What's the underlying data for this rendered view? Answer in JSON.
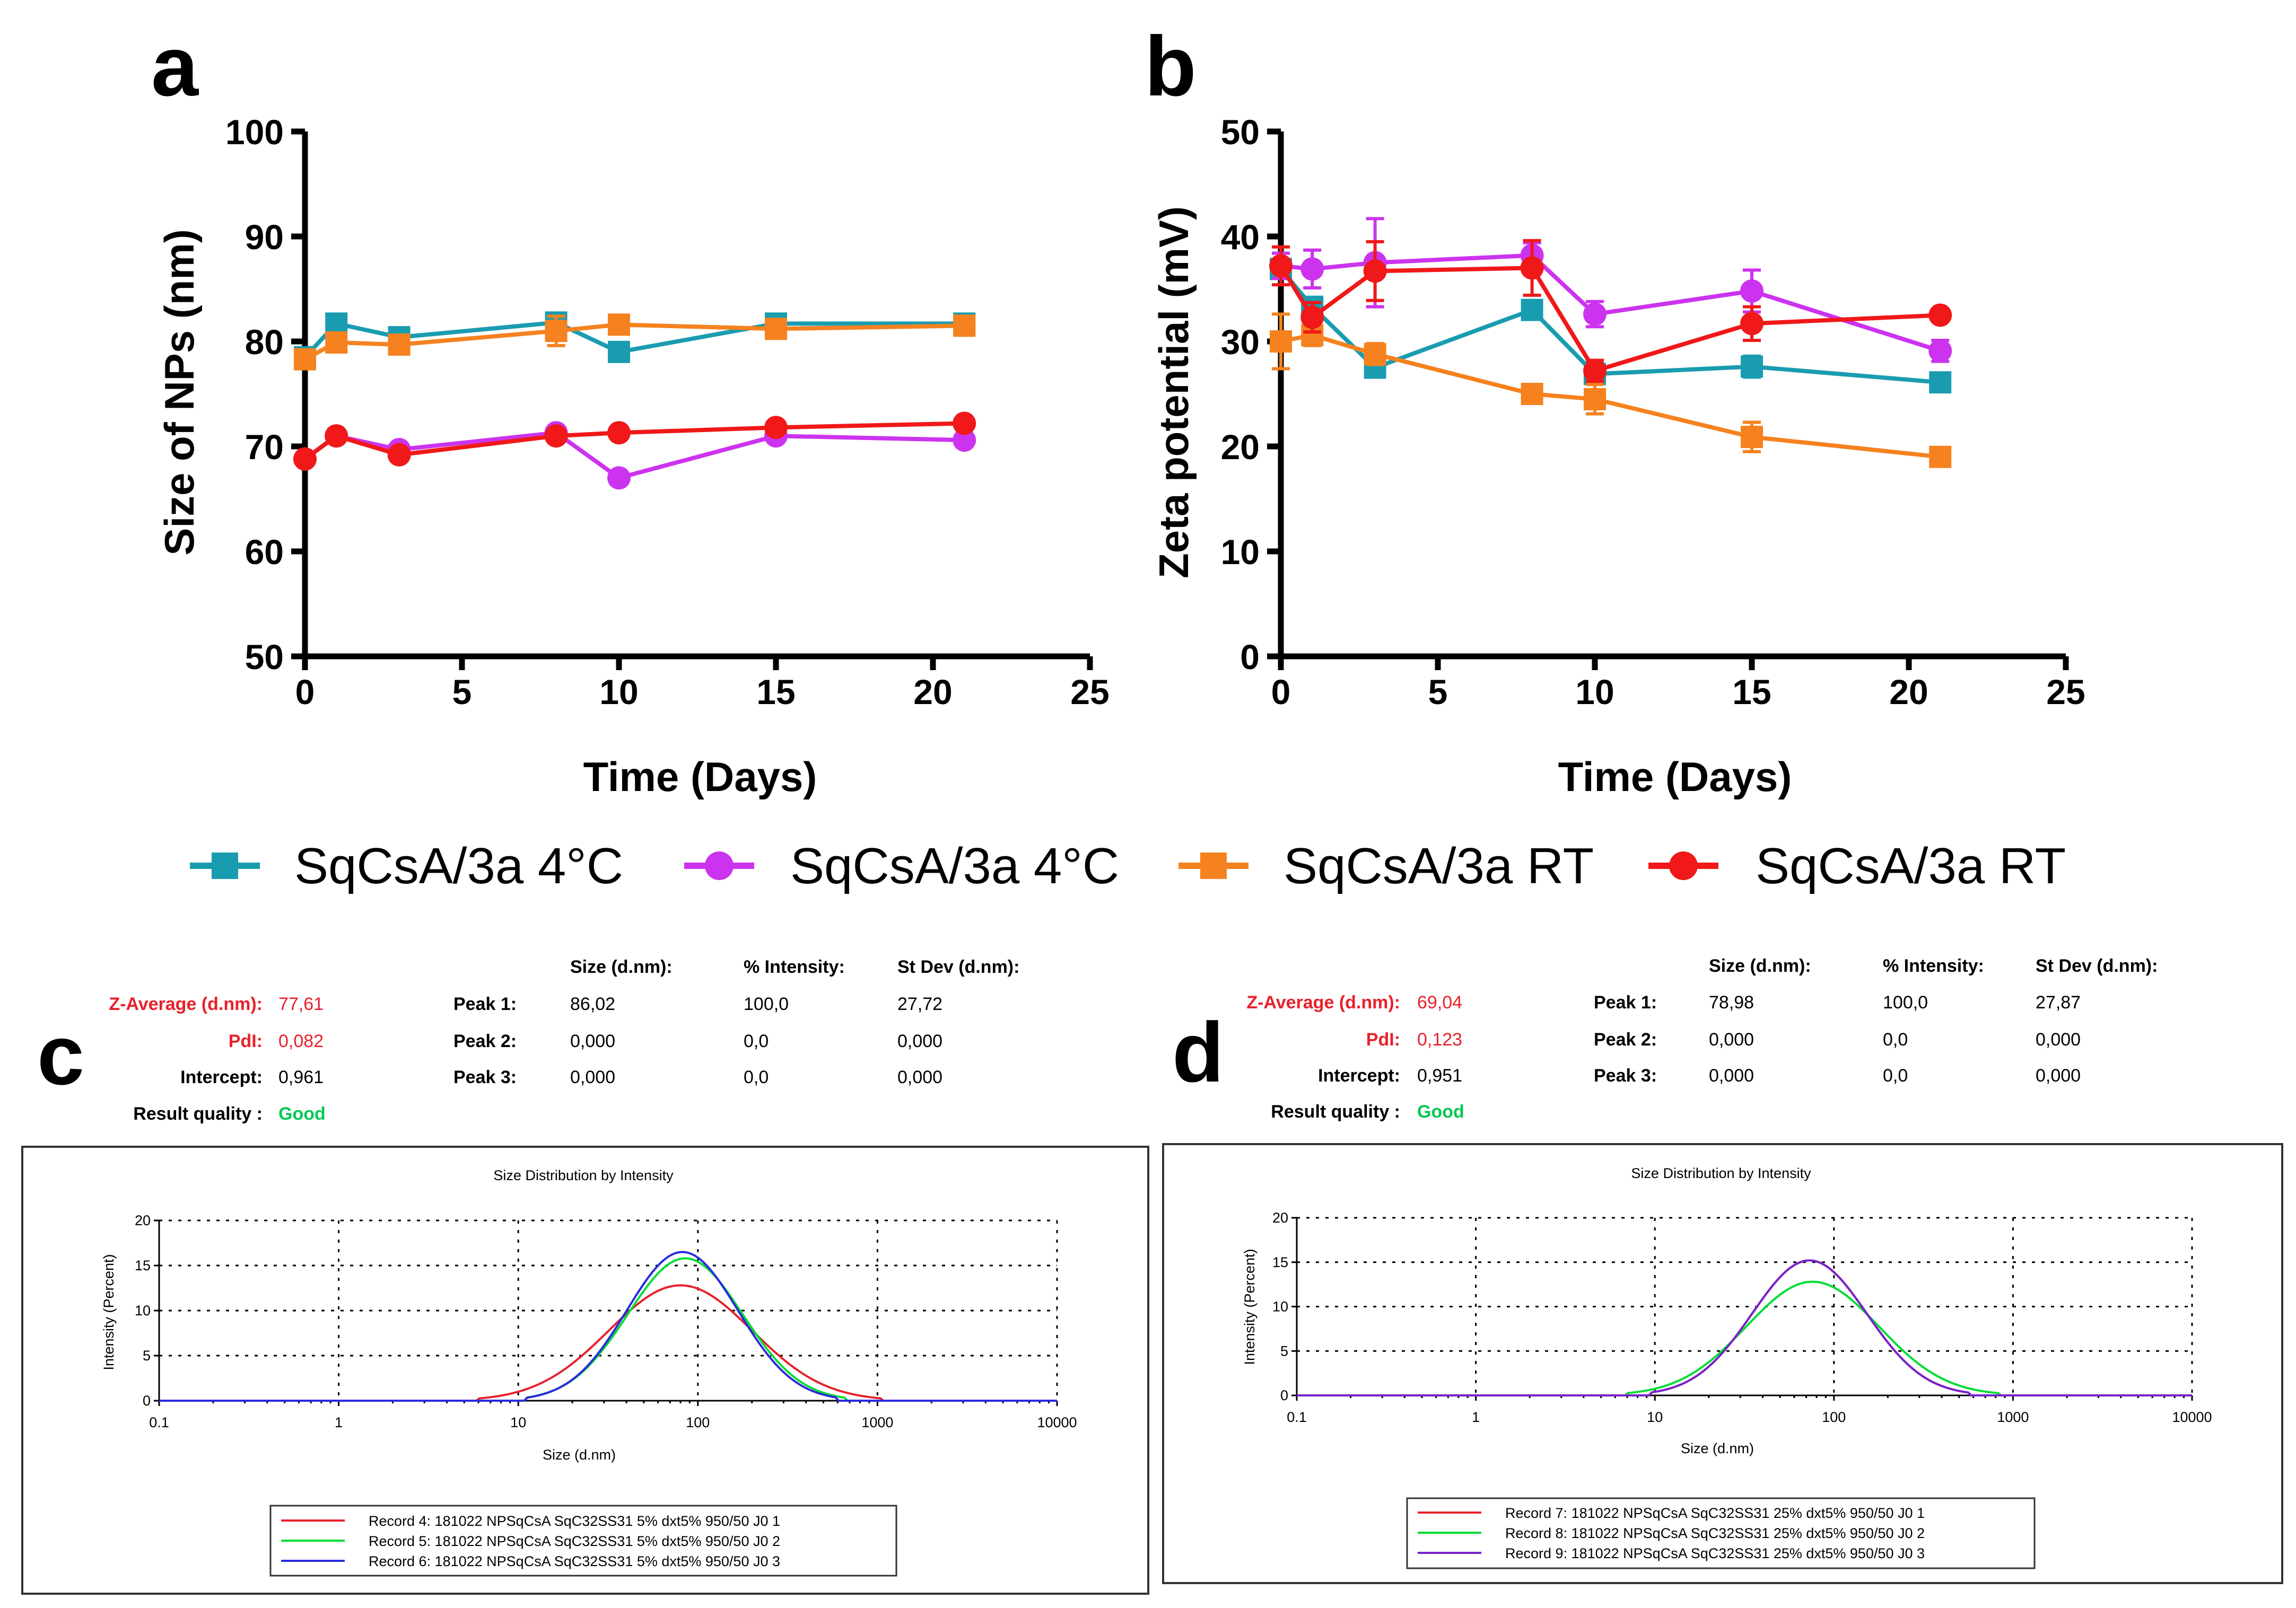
{
  "panel_labels": {
    "a": "a",
    "b": "b",
    "c": "c",
    "d": "d"
  },
  "legend": [
    {
      "label": "SqCsA/3a 4°C",
      "color": "#1a9cb0",
      "marker": "square"
    },
    {
      "label": "SqCsA/3a 4°C",
      "color": "#cc33ee",
      "marker": "circle"
    },
    {
      "label": "SqCsA/3a RT",
      "color": "#f5821f",
      "marker": "square"
    },
    {
      "label": "SqCsA/3a RT",
      "color": "#f01818",
      "marker": "circle"
    }
  ],
  "chart_data": [
    {
      "id": "a",
      "type": "line",
      "xlabel": "Time (Days)",
      "ylabel": "Size of NPs (nm)",
      "xlim": [
        0,
        25
      ],
      "ylim": [
        50,
        100
      ],
      "xticks": [
        0,
        5,
        10,
        15,
        20,
        25
      ],
      "yticks": [
        50,
        60,
        70,
        80,
        90,
        100
      ],
      "series": [
        {
          "name": "SqCsA/3a 4°C",
          "color": "#1a9cb0",
          "marker": "square",
          "x": [
            0,
            1,
            3,
            8,
            10,
            15,
            21
          ],
          "y": [
            78.5,
            81.7,
            80.4,
            81.8,
            79.0,
            81.7,
            81.7
          ],
          "err": [
            0.5,
            0.5,
            0.5,
            0.5,
            0.5,
            0.5,
            0.5
          ]
        },
        {
          "name": "SqCsA/3a 4°C",
          "color": "#cc33ee",
          "marker": "circle",
          "x": [
            0,
            1,
            3,
            8,
            10,
            15,
            21
          ],
          "y": [
            68.8,
            71.0,
            69.7,
            71.3,
            67.0,
            71.0,
            70.6
          ],
          "err": [
            0.3,
            0.3,
            0.3,
            0.3,
            0.3,
            0.3,
            0.3
          ]
        },
        {
          "name": "SqCsA/3a RT",
          "color": "#f5821f",
          "marker": "square",
          "x": [
            0,
            1,
            3,
            8,
            10,
            15,
            21
          ],
          "y": [
            78.3,
            79.9,
            79.7,
            81.0,
            81.6,
            81.2,
            81.5
          ],
          "err": [
            0.6,
            0.8,
            0.6,
            1.4,
            0.6,
            0.6,
            0.6
          ]
        },
        {
          "name": "SqCsA/3a RT",
          "color": "#f01818",
          "marker": "circle",
          "x": [
            0,
            1,
            3,
            8,
            10,
            15,
            21
          ],
          "y": [
            68.8,
            71.0,
            69.2,
            71.0,
            71.3,
            71.8,
            72.2
          ],
          "err": [
            0.3,
            0.3,
            0.3,
            0.3,
            0.3,
            0.3,
            0.3
          ]
        }
      ]
    },
    {
      "id": "b",
      "type": "line",
      "xlabel": "Time (Days)",
      "ylabel": "Zeta potential (mV)",
      "xlim": [
        0,
        25
      ],
      "ylim": [
        0,
        50
      ],
      "xticks": [
        0,
        5,
        10,
        15,
        20,
        25
      ],
      "yticks": [
        0,
        10,
        20,
        30,
        40,
        50
      ],
      "series": [
        {
          "name": "SqCsA/3a 4°C",
          "color": "#1a9cb0",
          "marker": "square",
          "x": [
            0,
            1,
            3,
            8,
            10,
            15,
            21
          ],
          "y": [
            36.9,
            33.3,
            27.5,
            33.0,
            26.9,
            27.6,
            26.1
          ],
          "err": [
            0.8,
            0.8,
            0.8,
            0.8,
            1.0,
            1.0,
            0.6
          ]
        },
        {
          "name": "SqCsA/3a 4°C",
          "color": "#cc33ee",
          "marker": "circle",
          "x": [
            0,
            1,
            3,
            8,
            10,
            15,
            21
          ],
          "y": [
            37.2,
            36.9,
            37.5,
            38.2,
            32.6,
            34.8,
            29.1
          ],
          "err": [
            1.2,
            1.8,
            4.2,
            1.2,
            1.2,
            2.0,
            1.0
          ]
        },
        {
          "name": "SqCsA/3a RT",
          "color": "#f5821f",
          "marker": "square",
          "x": [
            0,
            1,
            3,
            8,
            10,
            15,
            21
          ],
          "y": [
            30.0,
            30.6,
            28.8,
            25.0,
            24.5,
            20.9,
            19.0
          ],
          "err": [
            2.6,
            1.0,
            1.0,
            0.6,
            1.4,
            1.4,
            0.6
          ]
        },
        {
          "name": "SqCsA/3a RT",
          "color": "#f01818",
          "marker": "circle",
          "x": [
            0,
            1,
            3,
            8,
            10,
            15,
            21
          ],
          "y": [
            37.2,
            32.3,
            36.7,
            37.0,
            27.2,
            31.7,
            32.5
          ],
          "err": [
            1.8,
            1.4,
            2.8,
            2.6,
            1.0,
            1.6,
            0.4
          ]
        }
      ]
    },
    {
      "id": "c",
      "type": "line",
      "title": "Size Distribution by Intensity",
      "xlabel": "Size (d.nm)",
      "ylabel": "Intensity (Percent)",
      "xscale": "log",
      "xlim": [
        0.1,
        10000
      ],
      "ylim": [
        0,
        20
      ],
      "xticks": [
        0.1,
        1,
        10,
        100,
        1000,
        10000
      ],
      "xtick_labels": [
        "0.1",
        "1",
        "10",
        "100",
        "1000",
        "10000"
      ],
      "yticks": [
        0,
        5,
        10,
        15,
        20
      ],
      "series": [
        {
          "name": "Record 4: 181022 NPSqCsA SqC32SS31 5% dxt5% 950/50 J0 1",
          "color": "#e8212b",
          "peak_x": 80,
          "peak_y": 12.8,
          "sigma": 0.4
        },
        {
          "name": "Record 5: 181022 NPSqCsA SqC32SS31 5% dxt5% 950/50 J0 2",
          "color": "#00dd33",
          "peak_x": 85,
          "peak_y": 15.8,
          "sigma": 0.32
        },
        {
          "name": "Record 6: 181022 NPSqCsA SqC32SS31 5% dxt5% 950/50 J0 3",
          "color": "#2b2bdd",
          "peak_x": 82,
          "peak_y": 16.5,
          "sigma": 0.31
        }
      ]
    },
    {
      "id": "d",
      "type": "line",
      "title": "Size Distribution by Intensity",
      "xlabel": "Size (d.nm)",
      "ylabel": "Intensity (Percent)",
      "xscale": "log",
      "xlim": [
        0.1,
        10000
      ],
      "ylim": [
        0,
        20
      ],
      "xticks": [
        0.1,
        1,
        10,
        100,
        1000,
        10000
      ],
      "xtick_labels": [
        "0.1",
        "1",
        "10",
        "100",
        "1000",
        "10000"
      ],
      "yticks": [
        0,
        5,
        10,
        15,
        20
      ],
      "series": [
        {
          "name": "Record 7: 181022 NPSqCsA SqC32SS31 25% dxt5% 950/50 J0 1",
          "color": "#e8212b",
          "peak_x": 73,
          "peak_y": 15.2,
          "sigma": 0.32
        },
        {
          "name": "Record 8: 181022 NPSqCsA SqC32SS31 25% dxt5% 950/50 J0 2",
          "color": "#00dd33",
          "peak_x": 76,
          "peak_y": 12.8,
          "sigma": 0.37
        },
        {
          "name": "Record 9: 181022 NPSqCsA SqC32SS31 25% dxt5% 950/50 J0 3",
          "color": "#7722cc",
          "peak_x": 73,
          "peak_y": 15.2,
          "sigma": 0.32
        }
      ]
    }
  ],
  "dls": {
    "c": {
      "z_avg_label": "Z-Average (d.nm):",
      "z_avg": "77,61",
      "pdi_label": "PdI:",
      "pdi": "0,082",
      "intercept_label": "Intercept:",
      "intercept": "0,961",
      "quality_label": "Result quality :",
      "quality": "Good",
      "headers": [
        "Size (d.nm):",
        "% Intensity:",
        "St Dev (d.nm):"
      ],
      "peaks": [
        {
          "label": "Peak 1:",
          "size": "86,02",
          "intensity": "100,0",
          "stdev": "27,72"
        },
        {
          "label": "Peak 2:",
          "size": "0,000",
          "intensity": "0,0",
          "stdev": "0,000"
        },
        {
          "label": "Peak 3:",
          "size": "0,000",
          "intensity": "0,0",
          "stdev": "0,000"
        }
      ]
    },
    "d": {
      "z_avg_label": "Z-Average (d.nm):",
      "z_avg": "69,04",
      "pdi_label": "PdI:",
      "pdi": "0,123",
      "intercept_label": "Intercept:",
      "intercept": "0,951",
      "quality_label": "Result quality :",
      "quality": "Good",
      "headers": [
        "Size (d.nm):",
        "% Intensity:",
        "St Dev (d.nm):"
      ],
      "peaks": [
        {
          "label": "Peak 1:",
          "size": "78,98",
          "intensity": "100,0",
          "stdev": "27,87"
        },
        {
          "label": "Peak 2:",
          "size": "0,000",
          "intensity": "0,0",
          "stdev": "0,000"
        },
        {
          "label": "Peak 3:",
          "size": "0,000",
          "intensity": "0,0",
          "stdev": "0,000"
        }
      ]
    }
  }
}
